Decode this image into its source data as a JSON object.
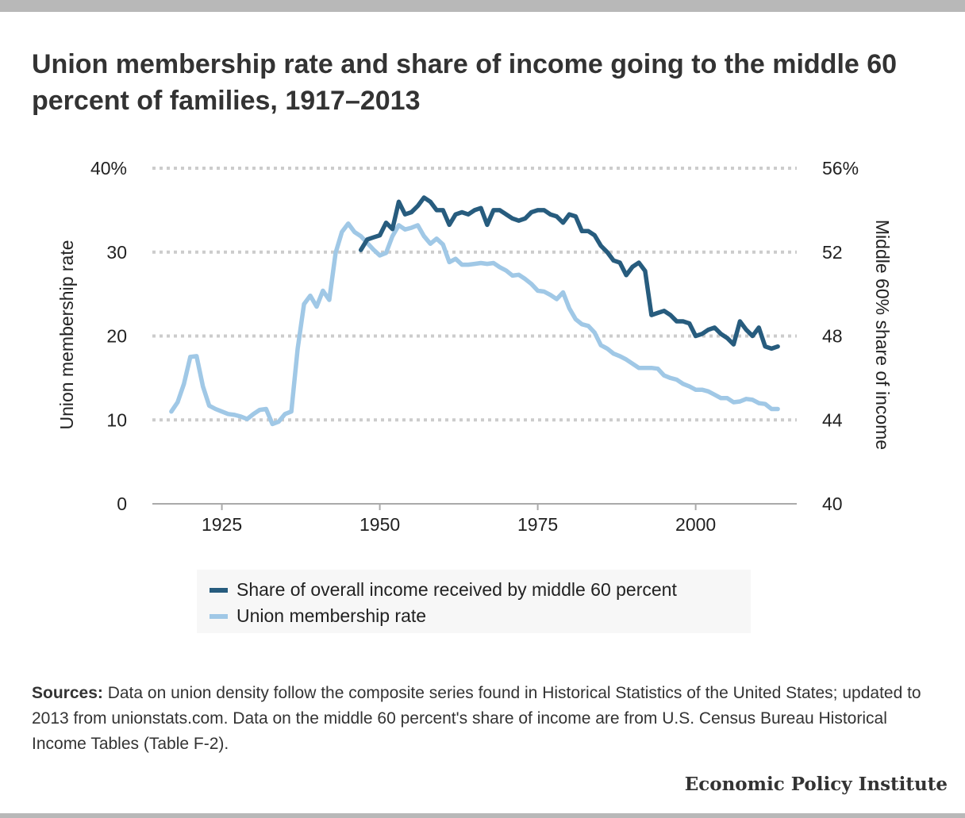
{
  "title": "Union membership rate and share of income going to the middle 60 percent of families, 1917–2013",
  "sources_label": "Sources:",
  "sources_text": " Data on union density follow the composite series found in Historical Statistics of the United States; updated to 2013 from unionstats.com. Data on the middle 60 percent's share of income are from U.S. Census Bureau Historical Income Tables (Table F-2).",
  "brand": "Economic Policy Institute",
  "colors": {
    "income": "#275c7e",
    "union": "#a0c8e6",
    "grid": "#cccccc",
    "axis": "#aaaaaa"
  },
  "chart_data": {
    "type": "line",
    "title": "Union membership rate and share of income going to the middle 60 percent of families, 1917–2013",
    "xlabel": "",
    "ylabel_left": "Union membership rate",
    "ylabel_right": "Middle 60% share of income",
    "xlim": [
      1914,
      2016
    ],
    "ylim_left": [
      0,
      40
    ],
    "ylim_right": [
      40,
      56
    ],
    "x_ticks": [
      "1925",
      "1950",
      "1975",
      "2000"
    ],
    "y_left_ticks": [
      "0",
      "10",
      "20",
      "30",
      "40%"
    ],
    "y_right_ticks": [
      "40",
      "44",
      "48",
      "52",
      "56%"
    ],
    "grid": true,
    "legend_position": "bottom",
    "series": [
      {
        "name": "Share of overall income received by middle 60 percent",
        "axis": "right",
        "x": [
          1947,
          1948,
          1949,
          1950,
          1951,
          1952,
          1953,
          1954,
          1955,
          1956,
          1957,
          1958,
          1959,
          1960,
          1961,
          1962,
          1963,
          1964,
          1965,
          1966,
          1967,
          1968,
          1969,
          1970,
          1971,
          1972,
          1973,
          1974,
          1975,
          1976,
          1977,
          1978,
          1979,
          1980,
          1981,
          1982,
          1983,
          1984,
          1985,
          1986,
          1987,
          1988,
          1989,
          1990,
          1991,
          1992,
          1993,
          1994,
          1995,
          1996,
          1997,
          1998,
          1999,
          2000,
          2001,
          2002,
          2003,
          2004,
          2005,
          2006,
          2007,
          2008,
          2009,
          2010,
          2011,
          2012,
          2013
        ],
        "values": [
          52.1,
          52.6,
          52.7,
          52.8,
          53.4,
          53.1,
          54.4,
          53.8,
          53.9,
          54.2,
          54.6,
          54.4,
          54.0,
          54.0,
          53.3,
          53.8,
          53.9,
          53.8,
          54.0,
          54.1,
          53.3,
          54.0,
          54.0,
          53.8,
          53.6,
          53.5,
          53.6,
          53.9,
          54.0,
          54.0,
          53.8,
          53.7,
          53.4,
          53.8,
          53.7,
          53.0,
          53.0,
          52.8,
          52.3,
          52.0,
          51.6,
          51.5,
          50.9,
          51.3,
          51.5,
          51.1,
          49.0,
          49.1,
          49.2,
          49.0,
          48.7,
          48.7,
          48.6,
          48.0,
          48.1,
          48.3,
          48.4,
          48.1,
          47.9,
          47.6,
          48.7,
          48.3,
          48.0,
          48.4,
          47.5,
          47.4,
          47.5
        ]
      },
      {
        "name": "Union membership rate",
        "axis": "left",
        "x": [
          1917,
          1918,
          1919,
          1920,
          1921,
          1922,
          1923,
          1924,
          1925,
          1926,
          1927,
          1928,
          1929,
          1930,
          1931,
          1932,
          1933,
          1934,
          1935,
          1936,
          1937,
          1938,
          1939,
          1940,
          1941,
          1942,
          1943,
          1944,
          1945,
          1946,
          1947,
          1948,
          1949,
          1950,
          1951,
          1952,
          1953,
          1954,
          1955,
          1956,
          1957,
          1958,
          1959,
          1960,
          1961,
          1962,
          1963,
          1964,
          1965,
          1966,
          1967,
          1968,
          1969,
          1970,
          1971,
          1972,
          1973,
          1974,
          1975,
          1976,
          1977,
          1978,
          1979,
          1980,
          1981,
          1982,
          1983,
          1984,
          1985,
          1986,
          1987,
          1988,
          1989,
          1990,
          1991,
          1992,
          1993,
          1994,
          1995,
          1996,
          1997,
          1998,
          1999,
          2000,
          2001,
          2002,
          2003,
          2004,
          2005,
          2006,
          2007,
          2008,
          2009,
          2010,
          2011,
          2012,
          2013
        ],
        "values": [
          11.0,
          12.1,
          14.3,
          17.5,
          17.6,
          14.0,
          11.7,
          11.3,
          11.0,
          10.7,
          10.6,
          10.4,
          10.1,
          10.7,
          11.2,
          11.3,
          9.5,
          9.8,
          10.7,
          11.0,
          18.5,
          23.8,
          24.8,
          23.5,
          25.4,
          24.3,
          29.9,
          32.4,
          33.4,
          32.4,
          31.9,
          31.1,
          30.3,
          29.6,
          29.9,
          31.9,
          33.2,
          32.7,
          32.9,
          33.2,
          31.9,
          31.0,
          31.6,
          30.9,
          28.8,
          29.2,
          28.5,
          28.5,
          28.6,
          28.7,
          28.6,
          28.7,
          28.2,
          27.8,
          27.2,
          27.3,
          26.8,
          26.2,
          25.4,
          25.3,
          24.9,
          24.4,
          25.2,
          23.3,
          22.0,
          21.4,
          21.2,
          20.4,
          18.9,
          18.5,
          17.9,
          17.6,
          17.2,
          16.7,
          16.2,
          16.2,
          16.2,
          16.1,
          15.3,
          15.0,
          14.8,
          14.3,
          14.0,
          13.6,
          13.6,
          13.4,
          13.0,
          12.6,
          12.6,
          12.1,
          12.2,
          12.5,
          12.4,
          12.0,
          11.9,
          11.3,
          11.3
        ]
      }
    ]
  }
}
